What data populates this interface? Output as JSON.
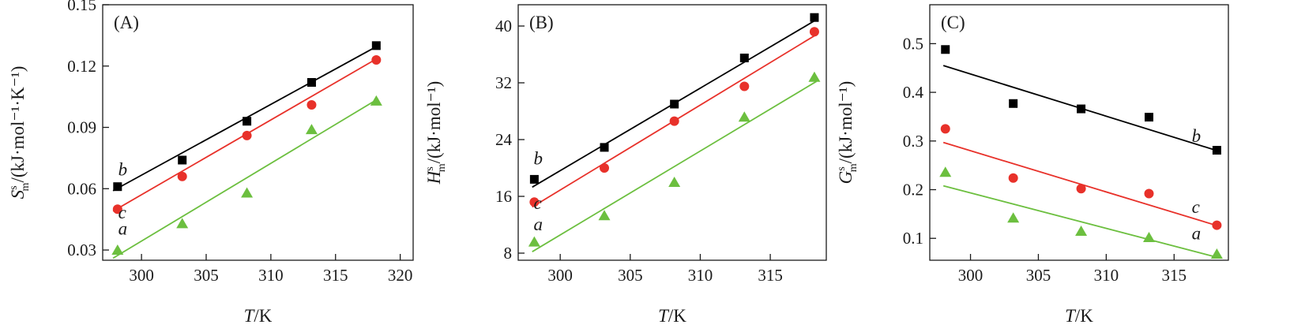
{
  "chart_data": [
    {
      "type": "scatter",
      "panel_label": "(A)",
      "ylabel": {
        "symbol": "S",
        "sup": "s",
        "sub": "m",
        "units": "/(kJ·mol⁻¹·K⁻¹)"
      },
      "xlabel": {
        "symbol": "T",
        "units": "/K"
      },
      "xlim": [
        297,
        321
      ],
      "ylim": [
        0.025,
        0.15
      ],
      "xticks": [
        300,
        305,
        310,
        315,
        320
      ],
      "yticks": [
        0.03,
        0.06,
        0.09,
        0.12,
        0.15
      ],
      "xtick_labels": [
        "300",
        "305",
        "310",
        "315",
        "320"
      ],
      "ytick_labels": [
        "0.03",
        "0.06",
        "0.09",
        "0.12",
        "0.15"
      ],
      "series": [
        {
          "name": "b",
          "color": "#000000",
          "marker": "square",
          "x": [
            298.15,
            303.15,
            308.15,
            313.15,
            318.15
          ],
          "values": [
            0.061,
            0.074,
            0.093,
            0.112,
            0.13
          ],
          "fit": [
            [
              297.8,
              0.059
            ],
            [
              318.3,
              0.13
            ]
          ],
          "label_at": [
            298.2,
            0.0665
          ]
        },
        {
          "name": "c",
          "color": "#e8312a",
          "marker": "circle",
          "x": [
            298.15,
            303.15,
            308.15,
            313.15,
            318.15
          ],
          "values": [
            0.05,
            0.066,
            0.086,
            0.101,
            0.123
          ],
          "fit": [
            [
              297.8,
              0.049
            ],
            [
              318.3,
              0.124
            ]
          ],
          "label_at": [
            298.2,
            0.0455
          ]
        },
        {
          "name": "a",
          "color": "#6cbf3f",
          "marker": "triangle",
          "x": [
            298.15,
            303.15,
            308.15,
            313.15,
            318.15
          ],
          "values": [
            0.03,
            0.043,
            0.058,
            0.089,
            0.103
          ],
          "fit": [
            [
              297.8,
              0.026
            ],
            [
              318.3,
              0.104
            ]
          ],
          "label_at": [
            298.2,
            0.0375
          ]
        }
      ]
    },
    {
      "type": "scatter",
      "panel_label": "(B)",
      "ylabel": {
        "symbol": "H",
        "sup": "s",
        "sub": "m",
        "units": "/(kJ·mol⁻¹)"
      },
      "xlabel": {
        "symbol": "T",
        "units": "/K"
      },
      "xlim": [
        297,
        319
      ],
      "ylim": [
        7,
        43
      ],
      "xticks": [
        300,
        305,
        310,
        315
      ],
      "yticks": [
        8,
        16,
        24,
        32,
        40
      ],
      "xtick_labels": [
        "300",
        "305",
        "310",
        "315"
      ],
      "ytick_labels": [
        "8",
        "16",
        "24",
        "32",
        "40"
      ],
      "series": [
        {
          "name": "b",
          "color": "#000000",
          "marker": "square",
          "x": [
            298.15,
            303.15,
            308.15,
            313.15,
            318.15
          ],
          "values": [
            18.4,
            22.9,
            29.0,
            35.5,
            41.2
          ],
          "fit": [
            [
              298.0,
              17.3
            ],
            [
              318.3,
              40.9
            ]
          ],
          "label_at": [
            298.1,
            20.5
          ]
        },
        {
          "name": "c",
          "color": "#e8312a",
          "marker": "circle",
          "x": [
            298.15,
            303.15,
            308.15,
            313.15,
            318.15
          ],
          "values": [
            15.2,
            20.0,
            26.6,
            31.5,
            39.2
          ],
          "fit": [
            [
              298.0,
              14.5
            ],
            [
              318.3,
              38.8
            ]
          ],
          "label_at": [
            298.1,
            14.2
          ]
        },
        {
          "name": "a",
          "color": "#6cbf3f",
          "marker": "triangle",
          "x": [
            298.15,
            303.15,
            308.15,
            313.15,
            318.15
          ],
          "values": [
            9.6,
            13.3,
            18.0,
            27.2,
            32.8
          ],
          "fit": [
            [
              298.0,
              8.2
            ],
            [
              318.3,
              32.2
            ]
          ],
          "label_at": [
            298.1,
            11.2
          ]
        }
      ]
    },
    {
      "type": "scatter",
      "panel_label": "(C)",
      "ylabel": {
        "symbol": "G",
        "sup": "s",
        "sub": "m",
        "units": "/(kJ·mol⁻¹)"
      },
      "xlabel": {
        "symbol": "T",
        "units": "/K"
      },
      "xlim": [
        297,
        319
      ],
      "ylim": [
        0.055,
        0.58
      ],
      "xticks": [
        300,
        305,
        310,
        315
      ],
      "yticks": [
        0.1,
        0.2,
        0.3,
        0.4,
        0.5
      ],
      "xtick_labels": [
        "300",
        "305",
        "310",
        "315"
      ],
      "ytick_labels": [
        "0.1",
        "0.2",
        "0.3",
        "0.4",
        "0.5"
      ],
      "series": [
        {
          "name": "b",
          "color": "#000000",
          "marker": "square",
          "x": [
            298.15,
            303.15,
            308.15,
            313.15,
            318.15
          ],
          "values": [
            0.488,
            0.377,
            0.366,
            0.349,
            0.281
          ],
          "fit": [
            [
              298.0,
              0.455
            ],
            [
              318.3,
              0.279
            ]
          ],
          "label_at": [
            316.3,
            0.298
          ]
        },
        {
          "name": "c",
          "color": "#e8312a",
          "marker": "circle",
          "x": [
            298.15,
            303.15,
            308.15,
            313.15,
            318.15
          ],
          "values": [
            0.325,
            0.224,
            0.202,
            0.192,
            0.127
          ],
          "fit": [
            [
              298.0,
              0.297
            ],
            [
              318.3,
              0.125
            ]
          ],
          "label_at": [
            316.3,
            0.152
          ]
        },
        {
          "name": "a",
          "color": "#6cbf3f",
          "marker": "triangle",
          "x": [
            298.15,
            303.15,
            308.15,
            313.15,
            318.15
          ],
          "values": [
            0.236,
            0.142,
            0.115,
            0.102,
            0.068
          ],
          "fit": [
            [
              298.0,
              0.208
            ],
            [
              318.3,
              0.06
            ]
          ],
          "label_at": [
            316.3,
            0.098
          ]
        }
      ]
    }
  ]
}
